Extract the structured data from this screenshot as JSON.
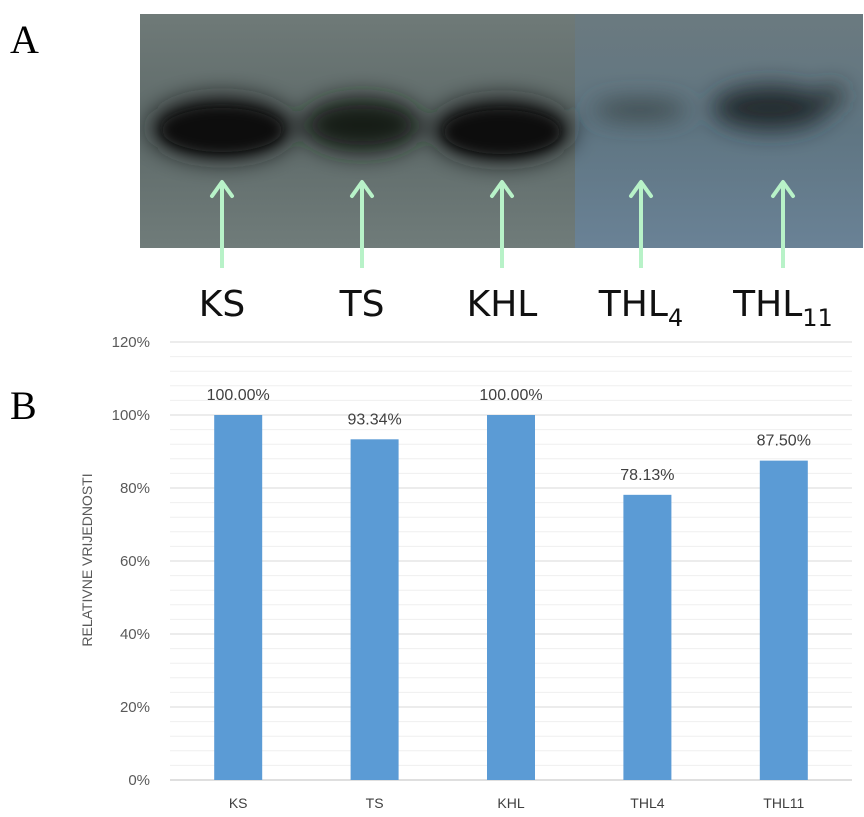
{
  "panels": {
    "a": "A",
    "b": "B"
  },
  "blot": {
    "lanes": [
      {
        "main": "KS",
        "sub": ""
      },
      {
        "main": "TS",
        "sub": ""
      },
      {
        "main": "KHL",
        "sub": ""
      },
      {
        "main": "THL",
        "sub": "4"
      },
      {
        "main": "THL",
        "sub": "11"
      }
    ],
    "arrow_color": "#b8f2c8"
  },
  "chart_data": {
    "type": "bar",
    "categories": [
      "KS",
      "TS",
      "KHL",
      "THL4",
      "THL11"
    ],
    "values": [
      100.0,
      93.34,
      100.0,
      78.13,
      87.5
    ],
    "data_labels": [
      "100.00%",
      "93.34%",
      "100.00%",
      "78.13%",
      "87.50%"
    ],
    "ylabel": "RELATIVNE VRIJEDNOSTI",
    "ylim": [
      0,
      120
    ],
    "yticks": [
      0,
      20,
      40,
      60,
      80,
      100,
      120
    ],
    "ytick_labels": [
      "0%",
      "20%",
      "40%",
      "60%",
      "80%",
      "100%",
      "120%"
    ],
    "grid": true,
    "bar_color": "#5b9bd5"
  }
}
